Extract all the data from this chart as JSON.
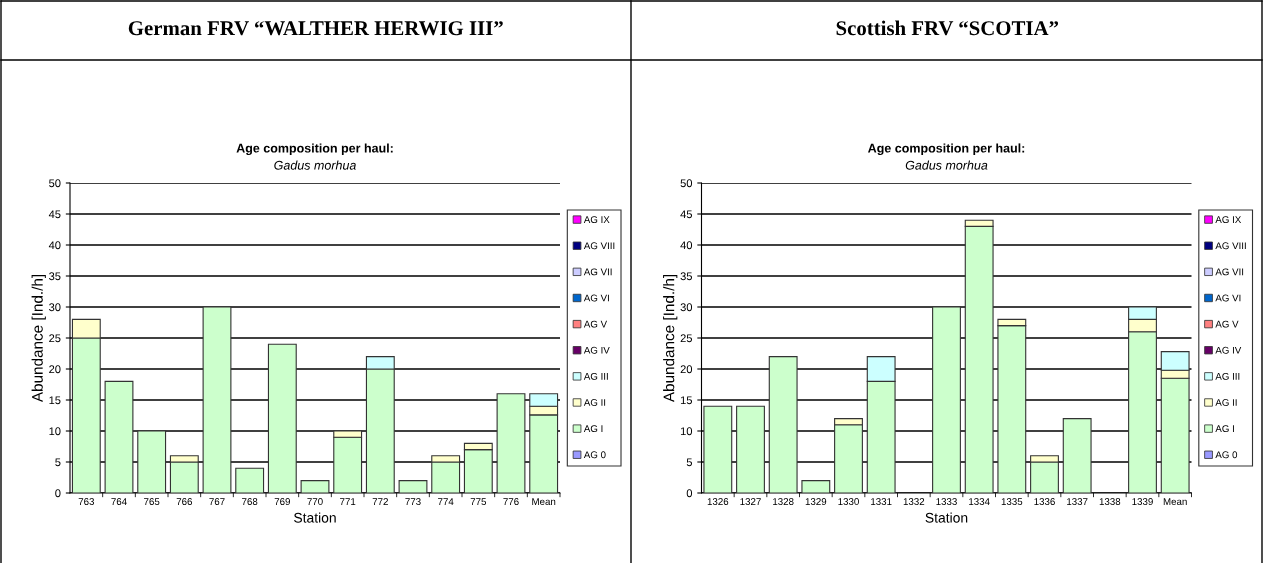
{
  "chart_data": [
    {
      "type": "bar",
      "stacked": true,
      "title": "Age composition per haul:",
      "subtitle": "Gadus morhua",
      "xlabel": "Station",
      "ylabel": "Abundance [Ind./h]",
      "annotations": [
        "German FRV “WALTHER HERWIG III”"
      ],
      "categories": [
        "763",
        "764",
        "765",
        "766",
        "767",
        "768",
        "769",
        "770",
        "771",
        "772",
        "773",
        "774",
        "775",
        "776",
        "Mean"
      ],
      "ylim": [
        0,
        50
      ],
      "yticks": [
        0,
        5,
        10,
        15,
        20,
        25,
        30,
        35,
        40,
        45,
        50
      ],
      "grid": "y",
      "legend": "right",
      "series": [
        {
          "name": "AG 0",
          "color": "#9999ff",
          "values": [
            0,
            0,
            0,
            0,
            0,
            0,
            0,
            0,
            0,
            0,
            0,
            0,
            0,
            0,
            0
          ]
        },
        {
          "name": "AG I",
          "color": "#ccffcc",
          "values": [
            25,
            18,
            10,
            5,
            30,
            4,
            24,
            2,
            9,
            20,
            2,
            5,
            7,
            16,
            12.6
          ]
        },
        {
          "name": "AG II",
          "color": "#ffffcc",
          "values": [
            3,
            0,
            0,
            1,
            0,
            0,
            0,
            0,
            1,
            0,
            0,
            1,
            1,
            0,
            1.4
          ]
        },
        {
          "name": "AG III",
          "color": "#ccffff",
          "values": [
            0,
            0,
            0,
            0,
            0,
            0,
            0,
            0,
            0,
            2,
            0,
            0,
            0,
            0,
            2.0
          ]
        },
        {
          "name": "AG IV",
          "color": "#660066",
          "values": [
            0,
            0,
            0,
            0,
            0,
            0,
            0,
            0,
            0,
            0,
            0,
            0,
            0,
            0,
            0
          ]
        },
        {
          "name": "AG V",
          "color": "#ff8080",
          "values": [
            0,
            0,
            0,
            0,
            0,
            0,
            0,
            0,
            0,
            0,
            0,
            0,
            0,
            0,
            0
          ]
        },
        {
          "name": "AG VI",
          "color": "#0066cc",
          "values": [
            0,
            0,
            0,
            0,
            0,
            0,
            0,
            0,
            0,
            0,
            0,
            0,
            0,
            0,
            0
          ]
        },
        {
          "name": "AG VII",
          "color": "#ccccff",
          "values": [
            0,
            0,
            0,
            0,
            0,
            0,
            0,
            0,
            0,
            0,
            0,
            0,
            0,
            0,
            0
          ]
        },
        {
          "name": "AG VIII",
          "color": "#000080",
          "values": [
            0,
            0,
            0,
            0,
            0,
            0,
            0,
            0,
            0,
            0,
            0,
            0,
            0,
            0,
            0
          ]
        },
        {
          "name": "AG IX",
          "color": "#ff00ff",
          "values": [
            0,
            0,
            0,
            0,
            0,
            0,
            0,
            0,
            0,
            0,
            0,
            0,
            0,
            0,
            0
          ]
        }
      ]
    },
    {
      "type": "bar",
      "stacked": true,
      "title": "Age composition per haul:",
      "subtitle": "Gadus morhua",
      "xlabel": "Station",
      "ylabel": "Abundance [Ind./h]",
      "annotations": [
        "Scottish FRV “SCOTIA”"
      ],
      "categories": [
        "1326",
        "1327",
        "1328",
        "1329",
        "1330",
        "1331",
        "1332",
        "1333",
        "1334",
        "1335",
        "1336",
        "1337",
        "1338",
        "1339",
        "Mean"
      ],
      "ylim": [
        0,
        50
      ],
      "yticks": [
        0,
        5,
        10,
        15,
        20,
        25,
        30,
        35,
        40,
        45,
        50
      ],
      "grid": "y",
      "legend": "right",
      "series": [
        {
          "name": "AG 0",
          "color": "#9999ff",
          "values": [
            0,
            0,
            0,
            0,
            0,
            0,
            0,
            0,
            0,
            0,
            0,
            0,
            0,
            0,
            0
          ]
        },
        {
          "name": "AG I",
          "color": "#ccffcc",
          "values": [
            14,
            14,
            22,
            2,
            11,
            18,
            0,
            30,
            43,
            27,
            5,
            12,
            0,
            26,
            18.5
          ]
        },
        {
          "name": "AG II",
          "color": "#ffffcc",
          "values": [
            0,
            0,
            0,
            0,
            1,
            0,
            0,
            0,
            1,
            1,
            1,
            0,
            0,
            2,
            1.3
          ]
        },
        {
          "name": "AG III",
          "color": "#ccffff",
          "values": [
            0,
            0,
            0,
            0,
            0,
            4,
            0,
            0,
            0,
            0,
            0,
            0,
            0,
            2,
            3.0
          ]
        },
        {
          "name": "AG IV",
          "color": "#660066",
          "values": [
            0,
            0,
            0,
            0,
            0,
            0,
            0,
            0,
            0,
            0,
            0,
            0,
            0,
            0,
            0
          ]
        },
        {
          "name": "AG V",
          "color": "#ff8080",
          "values": [
            0,
            0,
            0,
            0,
            0,
            0,
            0,
            0,
            0,
            0,
            0,
            0,
            0,
            0,
            0
          ]
        },
        {
          "name": "AG VI",
          "color": "#0066cc",
          "values": [
            0,
            0,
            0,
            0,
            0,
            0,
            0,
            0,
            0,
            0,
            0,
            0,
            0,
            0,
            0
          ]
        },
        {
          "name": "AG VII",
          "color": "#ccccff",
          "values": [
            0,
            0,
            0,
            0,
            0,
            0,
            0,
            0,
            0,
            0,
            0,
            0,
            0,
            0,
            0
          ]
        },
        {
          "name": "AG VIII",
          "color": "#000080",
          "values": [
            0,
            0,
            0,
            0,
            0,
            0,
            0,
            0,
            0,
            0,
            0,
            0,
            0,
            0,
            0
          ]
        },
        {
          "name": "AG IX",
          "color": "#ff00ff",
          "values": [
            0,
            0,
            0,
            0,
            0,
            0,
            0,
            0,
            0,
            0,
            0,
            0,
            0,
            0,
            0
          ]
        }
      ]
    }
  ]
}
